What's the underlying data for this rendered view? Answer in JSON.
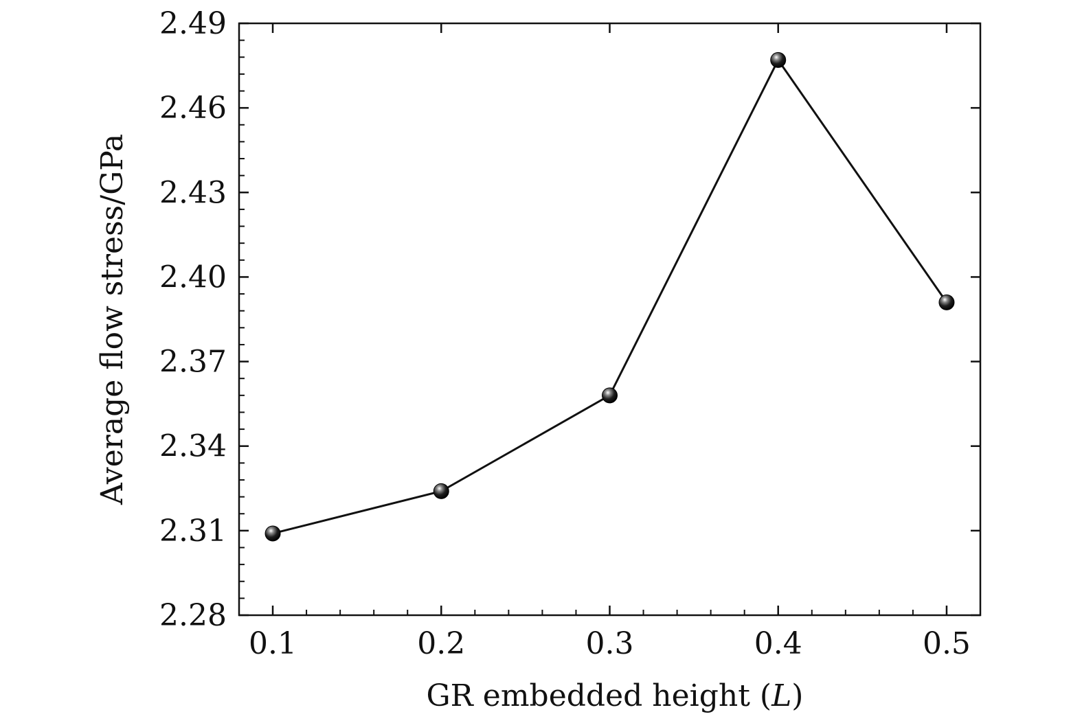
{
  "chart_data": {
    "type": "line",
    "xlabel": "GR embedded height (",
    "xlabel_var": "L",
    "xlabel_end": ")",
    "ylabel": "Average flow stress/GPa",
    "xlim": [
      0.08,
      0.52
    ],
    "ylim": [
      2.28,
      2.49
    ],
    "x_ticks": [
      "0.1",
      "0.2",
      "0.3",
      "0.4",
      "0.5"
    ],
    "y_ticks": [
      "2.28",
      "2.31",
      "2.34",
      "2.37",
      "2.40",
      "2.43",
      "2.46",
      "2.49"
    ],
    "grid": false,
    "legend": "none",
    "series": [
      {
        "x": [
          0.1,
          0.2,
          0.3,
          0.4,
          0.5
        ],
        "values": [
          2.309,
          2.324,
          2.358,
          2.477,
          2.391
        ]
      }
    ],
    "colors": {
      "line": "#111111",
      "marker": "#111111",
      "axis": "#111111"
    }
  }
}
